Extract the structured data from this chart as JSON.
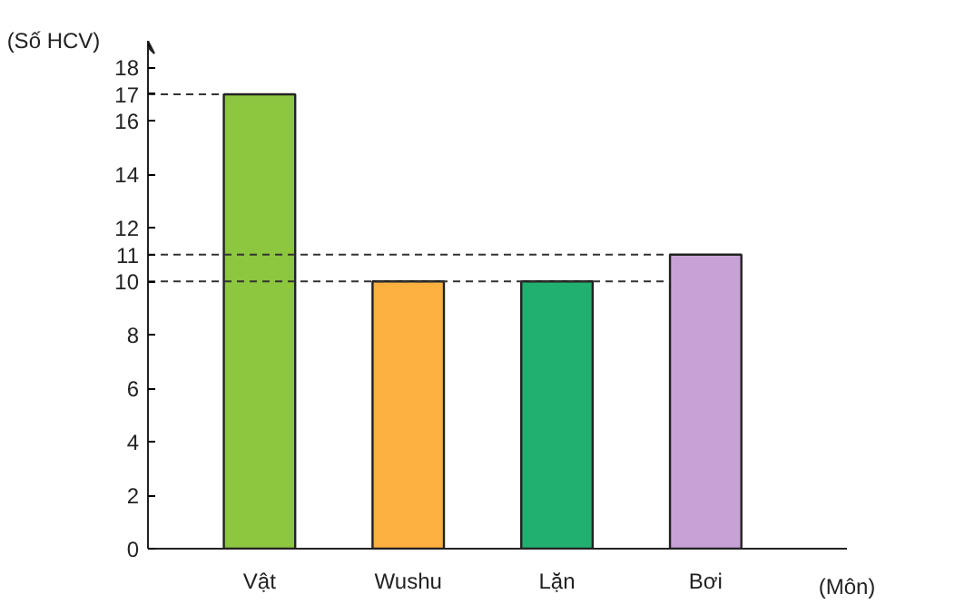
{
  "chart_data": {
    "type": "bar",
    "xlabel": "(Môn)",
    "ylabel": "(Số HCV)",
    "categories": [
      "Vật",
      "Wushu",
      "Lặn",
      "Bơi"
    ],
    "values": [
      17,
      10,
      10,
      11
    ],
    "colors": [
      "#8dc63f",
      "#fbb040",
      "#22b070",
      "#c8a2d6"
    ],
    "ylim": [
      0,
      19
    ],
    "yticks": [
      0,
      2,
      4,
      6,
      8,
      10,
      11,
      12,
      14,
      16,
      17,
      18
    ],
    "ref_lines": [
      {
        "axis": "y",
        "value": 17,
        "line_style": "dashed"
      },
      {
        "axis": "y",
        "value": 11,
        "line_style": "dashed"
      },
      {
        "axis": "y",
        "value": 10,
        "line_style": "dashed"
      }
    ],
    "grid": false
  }
}
